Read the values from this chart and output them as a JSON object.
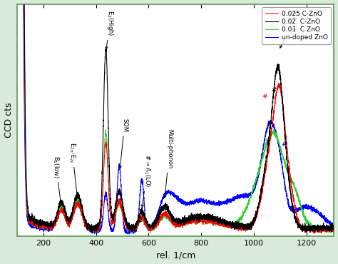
{
  "xlabel": "rel. 1/cm",
  "ylabel": "CCD cts",
  "xlim": [
    100,
    1300
  ],
  "legend_entries": [
    "0.025 C-ZnO",
    "0.02  C-ZnO",
    "0.01  C ZnO",
    "un-doped ZnO"
  ],
  "legend_colors": [
    "red",
    "black",
    "limegreen",
    "blue"
  ],
  "bg_color": "#e8f0e8",
  "spine_color": "#6aaa6a"
}
